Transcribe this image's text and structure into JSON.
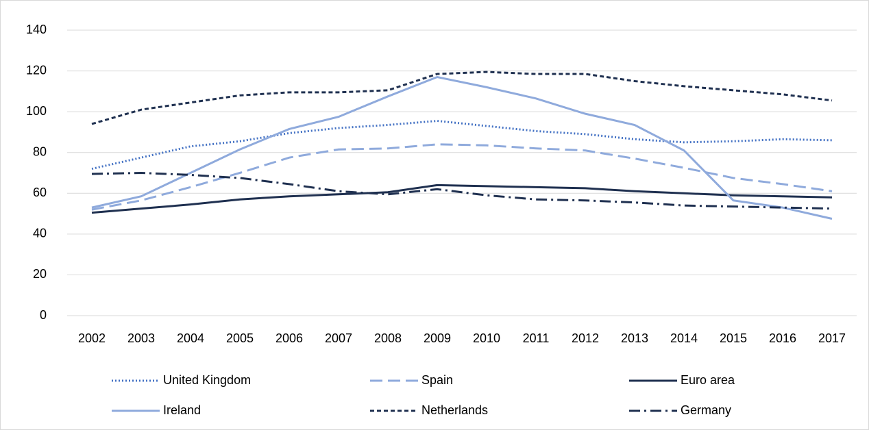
{
  "chart_data": {
    "type": "line",
    "categories": [
      "2002",
      "2003",
      "2004",
      "2005",
      "2006",
      "2007",
      "2008",
      "2009",
      "2010",
      "2011",
      "2012",
      "2013",
      "2014",
      "2015",
      "2016",
      "2017"
    ],
    "ylim": [
      0,
      140
    ],
    "yticks": [
      0,
      20,
      40,
      60,
      80,
      100,
      120,
      140
    ],
    "grid": true,
    "series": [
      {
        "name": "United Kingdom",
        "color": "#4472c4",
        "style": "dotted",
        "values": [
          72,
          77.5,
          83,
          85.5,
          89.5,
          92,
          93.5,
          95.5,
          93,
          90.5,
          89,
          86.5,
          85,
          85.5,
          86.5,
          86
        ]
      },
      {
        "name": "Spain",
        "color": "#8faadc",
        "style": "dashed",
        "values": [
          52,
          56.5,
          63,
          70,
          77.5,
          81.5,
          82,
          84,
          83.5,
          82,
          81,
          77,
          72.5,
          67.5,
          64.5,
          61
        ]
      },
      {
        "name": "Euro area",
        "color": "#1f3050",
        "style": "solid",
        "values": [
          50.5,
          52.5,
          54.5,
          57,
          58.5,
          59.5,
          60.5,
          64,
          63.5,
          63,
          62.5,
          61,
          60,
          59,
          58.5,
          58
        ]
      },
      {
        "name": "Ireland",
        "color": "#8faadc",
        "style": "solid",
        "values": [
          53,
          58.5,
          70,
          81.5,
          91.5,
          97.5,
          107.5,
          117,
          112,
          106.5,
          99,
          93.5,
          81,
          56.5,
          53,
          47.5
        ]
      },
      {
        "name": "Netherlands",
        "color": "#1f3050",
        "style": "short-dashed",
        "values": [
          94,
          101,
          104.5,
          108,
          109.5,
          109.5,
          110.5,
          118.5,
          119.5,
          118.5,
          118.5,
          115,
          112.5,
          110.5,
          108.5,
          105.5
        ]
      },
      {
        "name": "Germany",
        "color": "#1f3050",
        "style": "dash-dot",
        "values": [
          69.5,
          70,
          69,
          67.5,
          64.5,
          61,
          59.5,
          62,
          59,
          57,
          56.5,
          55.5,
          54,
          53.5,
          53,
          52.5
        ]
      }
    ]
  }
}
